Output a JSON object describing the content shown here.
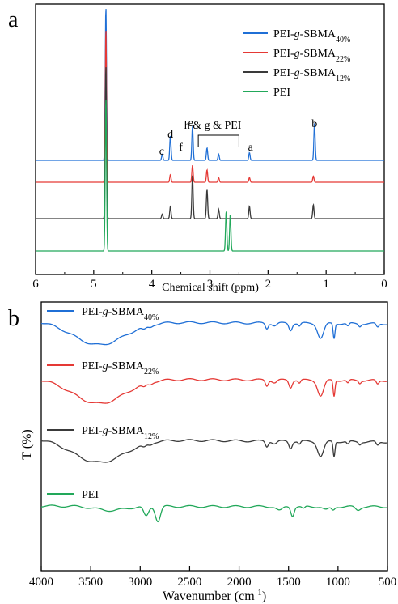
{
  "chart_data": [
    {
      "panel": "a",
      "type": "line",
      "xlabel": "Chemical shift (ppm)",
      "ylabel": "",
      "xlim": [
        6,
        0
      ],
      "x_ticks": [
        "6",
        "5",
        "4",
        "3",
        "2",
        "1",
        "0"
      ],
      "grid": false,
      "legend_position": "top-right",
      "series": [
        {
          "name_main": "PEI-",
          "name_italic": "g",
          "name_rest": "-SBMA",
          "name_sub": "40%",
          "color": "#1f6fd6",
          "peaks": [
            [
              4.79,
              1.0
            ],
            [
              3.68,
              0.16
            ],
            [
              3.3,
              0.22
            ],
            [
              3.05,
              0.08
            ],
            [
              2.32,
              0.05
            ],
            [
              1.2,
              0.24
            ],
            [
              3.82,
              0.04
            ],
            [
              2.85,
              0.04
            ]
          ]
        },
        {
          "name_main": "PEI-",
          "name_italic": "g",
          "name_rest": "-SBMA",
          "name_sub": "22%",
          "color": "#e53935",
          "peaks": [
            [
              4.79,
              1.0
            ],
            [
              3.68,
              0.05
            ],
            [
              3.3,
              0.11
            ],
            [
              3.05,
              0.08
            ],
            [
              2.32,
              0.03
            ],
            [
              1.22,
              0.04
            ],
            [
              2.85,
              0.03
            ]
          ]
        },
        {
          "name_main": "PEI-",
          "name_italic": "g",
          "name_rest": "-SBMA",
          "name_sub": "12%",
          "color": "#3a3a3a",
          "peaks": [
            [
              4.79,
              1.0
            ],
            [
              3.68,
              0.08
            ],
            [
              3.3,
              0.28
            ],
            [
              3.05,
              0.19
            ],
            [
              2.32,
              0.08
            ],
            [
              1.22,
              0.09
            ],
            [
              3.82,
              0.03
            ],
            [
              2.85,
              0.06
            ]
          ]
        },
        {
          "name_main": "PEI",
          "name_italic": "",
          "name_rest": "",
          "name_sub": "",
          "color": "#22a85a",
          "peaks": [
            [
              4.79,
              1.0
            ],
            [
              2.72,
              0.26
            ],
            [
              2.65,
              0.24
            ]
          ]
        }
      ],
      "peak_labels": [
        {
          "text": "c",
          "x": 3.83
        },
        {
          "text": "d",
          "x": 3.68
        },
        {
          "text": "f",
          "x": 3.5
        },
        {
          "text": "e",
          "x": 3.33
        },
        {
          "text": "h & g & PEI",
          "x": 2.95
        },
        {
          "text": "a",
          "x": 2.3
        },
        {
          "text": "b",
          "x": 1.2
        }
      ],
      "bracket": {
        "x_start": 3.2,
        "x_end": 2.5
      }
    },
    {
      "panel": "b",
      "type": "line",
      "xlabel_main": "Wavenumber (cm",
      "xlabel_sup": "-1",
      "xlabel_end": ")",
      "ylabel": "T (%)",
      "xlim": [
        4000,
        500
      ],
      "x_ticks": [
        "4000",
        "3500",
        "3000",
        "2500",
        "2000",
        "1500",
        "1000",
        "500"
      ],
      "grid": false,
      "legend_position": "in-line above each trace",
      "series": [
        {
          "name_main": "PEI-",
          "name_italic": "g",
          "name_rest": "-SBMA",
          "name_sub": "40%",
          "color": "#1f6fd6"
        },
        {
          "name_main": "PEI-",
          "name_italic": "g",
          "name_rest": "-SBMA",
          "name_sub": "22%",
          "color": "#e53935"
        },
        {
          "name_main": "PEI-",
          "name_italic": "g",
          "name_rest": "-SBMA",
          "name_sub": "12%",
          "color": "#3a3a3a"
        },
        {
          "name_main": "PEI",
          "name_italic": "",
          "name_rest": "",
          "name_sub": "",
          "color": "#22a85a"
        }
      ]
    }
  ]
}
